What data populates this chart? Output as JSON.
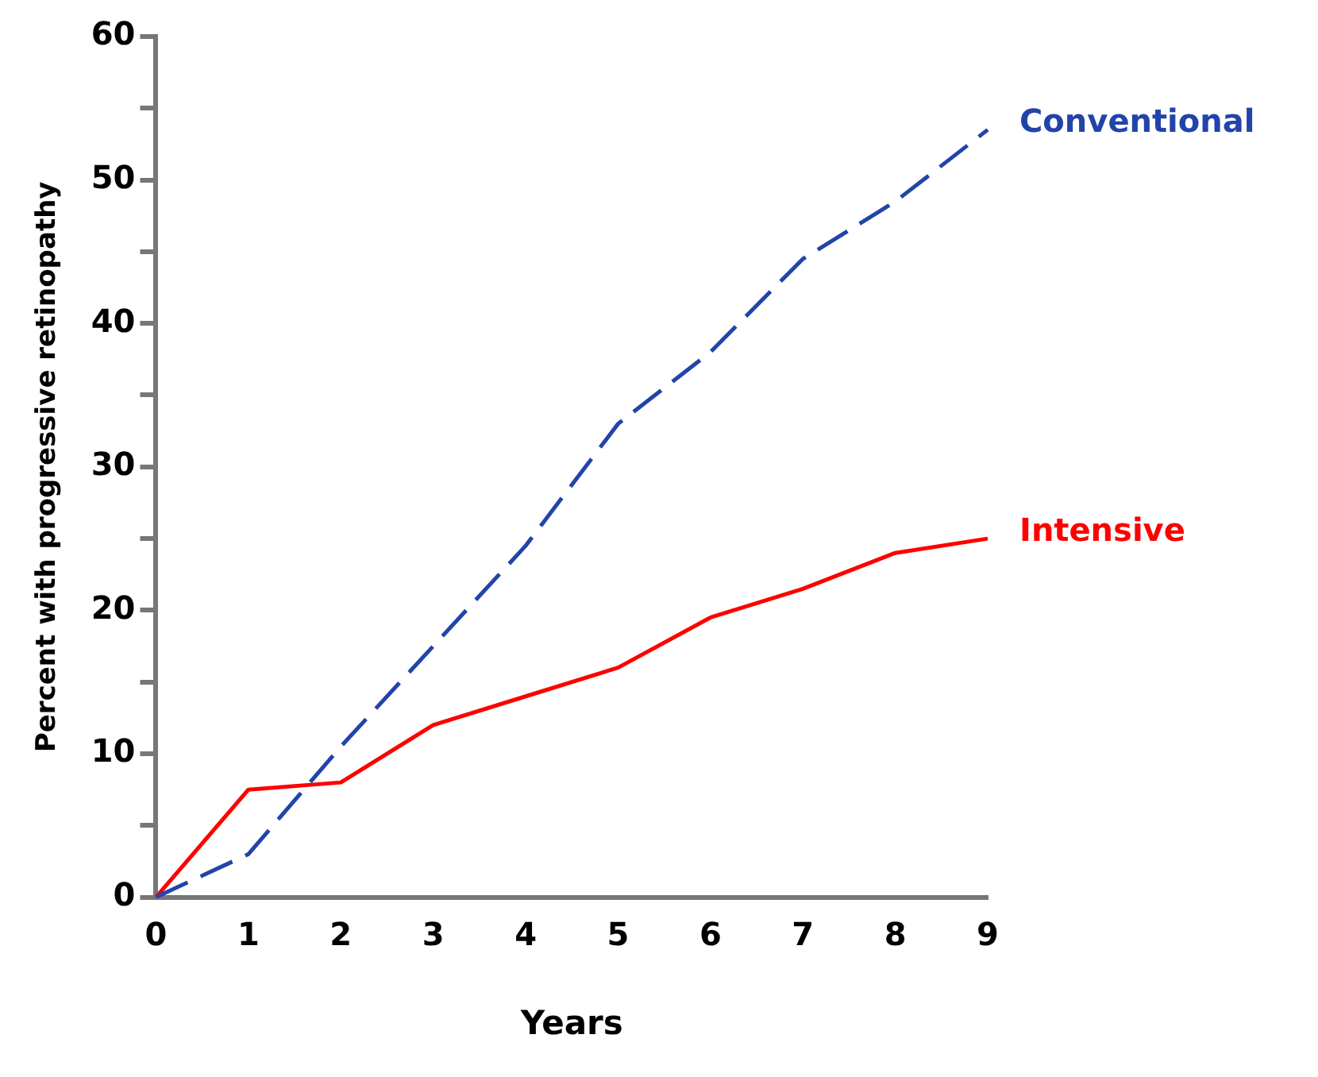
{
  "chart_data": {
    "type": "line",
    "xlabel": "Years",
    "ylabel": "Percent with progressive retinopathy",
    "x": [
      0,
      1,
      2,
      3,
      4,
      5,
      6,
      7,
      8,
      9
    ],
    "series": [
      {
        "name": "Conventional",
        "color": "#2244aa",
        "line_style": "dashed",
        "values": [
          0,
          3,
          10.5,
          17.5,
          24.5,
          33,
          38,
          44.5,
          48.5,
          53.5
        ]
      },
      {
        "name": "Intensive",
        "color": "#ff0000",
        "line_style": "solid",
        "values": [
          0,
          7.5,
          8,
          12,
          14,
          16,
          19.5,
          21.5,
          24,
          25
        ]
      }
    ],
    "xlim": [
      0,
      9
    ],
    "xticks": [
      0,
      1,
      2,
      3,
      4,
      5,
      6,
      7,
      8,
      9
    ],
    "ylim": [
      0,
      60
    ],
    "yticks": [
      0,
      {
        "value": 5,
        "label": null
      },
      10,
      {
        "value": 15,
        "label": null
      },
      20,
      {
        "value": 25,
        "label": null
      },
      30,
      {
        "value": 35,
        "label": null
      },
      40,
      {
        "value": 45,
        "label": null
      },
      50,
      {
        "value": 55,
        "label": null
      },
      60
    ],
    "grid": false,
    "legend": false,
    "marker": "none"
  }
}
